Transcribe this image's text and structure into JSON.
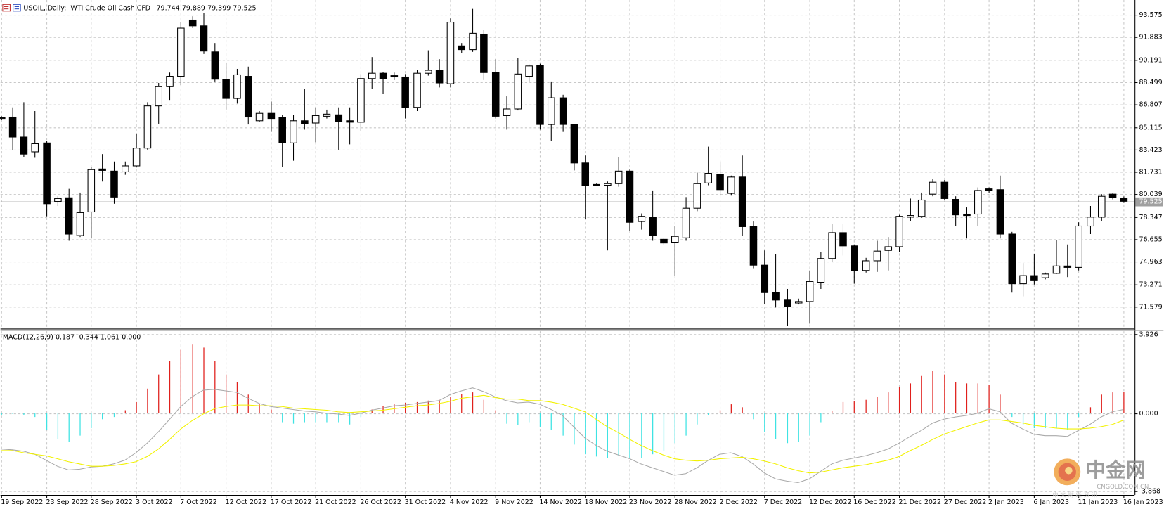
{
  "chart_data": {
    "type": "candlestick",
    "title": "USOIL, Daily:  WTI Crude Oil Cash CFD",
    "categories": [
      "19 Sep 2022",
      null,
      null,
      null,
      "23 Sep 2022",
      null,
      null,
      null,
      "28 Sep 2022",
      null,
      null,
      null,
      "3 Oct 2022",
      null,
      null,
      null,
      "7 Oct 2022",
      null,
      null,
      null,
      "12 Oct 2022",
      null,
      null,
      null,
      "17 Oct 2022",
      null,
      null,
      null,
      "21 Oct 2022",
      null,
      null,
      null,
      "26 Oct 2022",
      null,
      null,
      null,
      "31 Oct 2022",
      null,
      null,
      null,
      "4 Nov 2022",
      null,
      null,
      null,
      "9 Nov 2022",
      null,
      null,
      null,
      "14 Nov 2022",
      null,
      null,
      null,
      "18 Nov 2022",
      null,
      null,
      null,
      "23 Nov 2022",
      null,
      null,
      null,
      "28 Nov 2022",
      null,
      null,
      null,
      "2 Dec 2022",
      null,
      null,
      null,
      "7 Dec 2022",
      null,
      null,
      null,
      "12 Dec 2022",
      null,
      null,
      null,
      "16 Dec 2022",
      null,
      null,
      null,
      "21 Dec 2022",
      null,
      null,
      null,
      "27 Dec 2022",
      null,
      null,
      null,
      "2 Jan 2023",
      null,
      null,
      null,
      "6 Jan 2023",
      null,
      null,
      null,
      "11 Jan 2023",
      null,
      null,
      null,
      "16 Jan 2023"
    ],
    "open": [
      85.76,
      85.87,
      84.36,
      83.25,
      83.92,
      79.51,
      79.79,
      76.94,
      78.72,
      81.96,
      81.8,
      81.74,
      82.19,
      83.53,
      86.71,
      88.16,
      88.94,
      93.18,
      92.74,
      90.78,
      88.72,
      87.27,
      88.94,
      85.59,
      86.15,
      85.82,
      83.92,
      85.59,
      85.42,
      85.93,
      86.04,
      85.59,
      85.48,
      88.77,
      89.17,
      88.99,
      88.89,
      86.6,
      89.17,
      89.39,
      88.38,
      91.23,
      90.95,
      92.12,
      89.22,
      85.98,
      86.48,
      88.94,
      89.78,
      85.31,
      87.32,
      85.31,
      82.41,
      80.79,
      80.73,
      80.85,
      81.8,
      78.0,
      78.33,
      76.66,
      76.44,
      76.77,
      79.0,
      80.9,
      81.57,
      80.12,
      81.35,
      77.61,
      74.71,
      72.64,
      72.08,
      71.86,
      71.97,
      73.42,
      75.21,
      77.16,
      76.16,
      74.31,
      75.04,
      75.82,
      76.1,
      78.33,
      78.39,
      80.06,
      80.96,
      79.67,
      78.56,
      78.56,
      80.46,
      80.4,
      77.05,
      73.31,
      73.92,
      73.76,
      74.09,
      74.65,
      74.54,
      77.66,
      78.33,
      80.06,
      79.744
    ],
    "high": [
      85.93,
      86.6,
      86.99,
      86.32,
      84.08,
      79.9,
      80.46,
      80.18,
      82.13,
      83.08,
      82.52,
      82.52,
      84.64,
      86.99,
      88.44,
      89.22,
      93.02,
      93.46,
      93.69,
      91.45,
      89.95,
      89.5,
      89.67,
      86.32,
      87.04,
      86.04,
      86.04,
      87.99,
      86.6,
      86.43,
      86.6,
      86.6,
      89.11,
      90.39,
      89.28,
      89.22,
      89.11,
      89.44,
      90.9,
      90.23,
      93.3,
      91.45,
      94.02,
      92.46,
      90.23,
      87.43,
      90.34,
      89.83,
      89.89,
      88.55,
      87.55,
      85.31,
      82.97,
      80.85,
      81.01,
      82.86,
      81.91,
      78.61,
      80.34,
      76.72,
      77.66,
      79.84,
      81.68,
      83.64,
      82.52,
      81.46,
      82.97,
      78.0,
      75.82,
      75.54,
      72.92,
      72.19,
      74.31,
      75.71,
      77.83,
      77.83,
      76.27,
      75.26,
      76.55,
      76.83,
      78.5,
      79.73,
      80.18,
      81.18,
      81.13,
      79.9,
      79.06,
      80.57,
      80.57,
      81.46,
      77.22,
      74.87,
      75.54,
      74.15,
      76.6,
      76.27,
      77.94,
      79.17,
      80.06,
      80.12,
      79.889
    ],
    "low": [
      85.65,
      83.36,
      82.86,
      82.8,
      78.39,
      79.17,
      76.55,
      76.83,
      76.72,
      81.01,
      79.34,
      81.52,
      82.07,
      83.41,
      85.37,
      87.16,
      88.27,
      92.57,
      90.62,
      88.55,
      86.43,
      86.88,
      85.31,
      85.48,
      84.75,
      82.13,
      82.58,
      84.92,
      83.97,
      85.76,
      83.41,
      83.81,
      84.81,
      87.99,
      87.6,
      88.66,
      85.76,
      86.32,
      88.99,
      88.1,
      88.1,
      90.67,
      90.78,
      88.66,
      85.76,
      84.92,
      86.37,
      88.55,
      84.92,
      84.08,
      84.75,
      81.85,
      78.17,
      80.68,
      75.82,
      80.62,
      77.27,
      77.39,
      76.55,
      76.27,
      73.92,
      76.55,
      78.78,
      80.73,
      79.95,
      79.95,
      76.94,
      74.48,
      71.8,
      71.52,
      70.13,
      71.75,
      70.3,
      72.92,
      74.98,
      75.43,
      73.31,
      74.15,
      74.2,
      74.31,
      75.71,
      78.05,
      78.28,
      79.9,
      79.62,
      77.66,
      76.72,
      77.66,
      80.18,
      76.72,
      72.64,
      72.36,
      73.25,
      73.64,
      74.04,
      73.81,
      74.31,
      77.05,
      78.05,
      79.67,
      79.399
    ],
    "close": [
      85.82,
      84.36,
      83.08,
      83.86,
      79.34,
      79.73,
      77.05,
      78.67,
      81.91,
      81.85,
      79.84,
      82.19,
      83.53,
      86.71,
      88.16,
      88.94,
      92.57,
      92.74,
      90.84,
      88.72,
      87.27,
      89.05,
      85.87,
      86.15,
      85.76,
      83.92,
      85.59,
      85.37,
      85.98,
      86.09,
      85.54,
      85.48,
      88.77,
      89.17,
      88.77,
      88.89,
      86.6,
      89.17,
      89.39,
      88.44,
      93.02,
      90.95,
      92.18,
      89.22,
      85.93,
      86.48,
      89.11,
      89.72,
      85.31,
      87.32,
      85.31,
      82.41,
      80.73,
      80.73,
      80.85,
      81.8,
      77.94,
      78.39,
      76.94,
      76.38,
      76.88,
      79.0,
      80.85,
      81.63,
      80.4,
      81.35,
      77.61,
      74.71,
      72.64,
      72.08,
      71.58,
      71.97,
      73.48,
      75.21,
      77.16,
      76.16,
      74.31,
      75.04,
      75.77,
      76.1,
      78.39,
      78.45,
      79.62,
      80.96,
      79.73,
      78.5,
      78.45,
      80.34,
      80.34,
      77.05,
      73.31,
      73.92,
      73.59,
      74.04,
      74.65,
      74.54,
      77.66,
      78.33,
      79.9,
      79.79,
      79.525
    ],
    "up_color": "#ffffff",
    "down_color": "#000000",
    "last_price_color": "#a0a0a0",
    "ylim": [
      69.96,
      94.69
    ],
    "yticks": [
      93.575,
      91.883,
      90.191,
      88.499,
      86.807,
      85.115,
      83.423,
      81.731,
      80.039,
      78.347,
      76.655,
      74.963,
      73.271,
      71.579
    ],
    "grid": true,
    "indicator": {
      "type": "macd",
      "label": "MACD(12,26,9)",
      "ylim": [
        -4.05,
        4.07
      ],
      "yticks": [
        3.926,
        {
          "value": 0,
          "label": "0.000"
        },
        -3.868
      ],
      "histogram": {
        "up_color": "#e0201c",
        "down_color": "#3fe3e3",
        "values": [
          -0.074,
          -0.037,
          -0.111,
          -0.185,
          -0.814,
          -1.295,
          -1.406,
          -1.11,
          -0.74,
          -0.296,
          -0.185,
          0.148,
          0.555,
          1.221,
          1.924,
          2.59,
          3.145,
          3.404,
          3.256,
          2.59,
          1.924,
          1.554,
          0.925,
          0.444,
          0.185,
          -0.444,
          -0.518,
          -0.444,
          -0.444,
          -0.444,
          -0.444,
          -0.555,
          -0.185,
          0.185,
          0.37,
          0.444,
          0.518,
          0.555,
          0.629,
          0.666,
          0.814,
          0.962,
          1.036,
          0.666,
          0.148,
          -0.518,
          -0.592,
          -0.444,
          -0.666,
          -0.814,
          -1.11,
          -1.554,
          -2.035,
          -2.146,
          -2.22,
          -2.109,
          -2.22,
          -2.22,
          -2.035,
          -1.85,
          -1.48,
          -1.11,
          -0.555,
          -0.111,
          0.148,
          0.444,
          0.296,
          -0.296,
          -0.925,
          -1.295,
          -1.48,
          -1.406,
          -1.11,
          -0.444,
          0.111,
          0.555,
          0.592,
          0.666,
          0.814,
          1.036,
          1.295,
          1.48,
          1.85,
          2.109,
          1.924,
          1.554,
          1.48,
          1.48,
          1.406,
          0.925,
          -0.185,
          -0.555,
          -0.74,
          -0.74,
          -0.74,
          -0.814,
          -0.185,
          0.296,
          0.925,
          1.036,
          1.061
        ]
      },
      "macd": {
        "color": "#a9a9a9",
        "values": [
          -1.776,
          -1.813,
          -1.887,
          -2.035,
          -2.331,
          -2.627,
          -2.812,
          -2.775,
          -2.664,
          -2.627,
          -2.516,
          -2.331,
          -1.961,
          -1.48,
          -0.925,
          -0.296,
          0.333,
          0.814,
          1.147,
          1.184,
          1.11,
          1.036,
          0.74,
          0.481,
          0.333,
          0.259,
          0.185,
          0.111,
          0.074,
          0,
          -0.037,
          -0.111,
          0,
          0.148,
          0.259,
          0.37,
          0.407,
          0.481,
          0.555,
          0.629,
          0.925,
          1.11,
          1.258,
          1.073,
          0.814,
          0.629,
          0.518,
          0.555,
          0.444,
          0.185,
          -0.111,
          -0.666,
          -1.221,
          -1.591,
          -1.887,
          -2.072,
          -2.257,
          -2.516,
          -2.701,
          -2.886,
          -3.071,
          -2.997,
          -2.701,
          -2.331,
          -2.035,
          -1.961,
          -2.146,
          -2.516,
          -2.96,
          -3.256,
          -3.367,
          -3.441,
          -3.256,
          -2.886,
          -2.516,
          -2.331,
          -2.22,
          -2.109,
          -1.961,
          -1.776,
          -1.48,
          -1.147,
          -0.851,
          -0.481,
          -0.296,
          -0.185,
          -0.111,
          0,
          0.222,
          0.074,
          -0.481,
          -0.777,
          -1.036,
          -1.11,
          -1.11,
          -1.147,
          -0.851,
          -0.555,
          -0.185,
          0.074,
          0.187
        ]
      },
      "signal": {
        "color": "#f2f200",
        "values": [
          -1.85,
          -1.85,
          -1.961,
          -2.035,
          -2.109,
          -2.257,
          -2.405,
          -2.516,
          -2.627,
          -2.627,
          -2.59,
          -2.516,
          -2.405,
          -2.146,
          -1.776,
          -1.295,
          -0.777,
          -0.37,
          -0.037,
          0.222,
          0.333,
          0.407,
          0.407,
          0.37,
          0.37,
          0.333,
          0.259,
          0.222,
          0.185,
          0.148,
          0.074,
          0.037,
          0.074,
          0.111,
          0.148,
          0.222,
          0.296,
          0.37,
          0.407,
          0.481,
          0.592,
          0.74,
          0.814,
          0.888,
          0.777,
          0.703,
          0.703,
          0.629,
          0.629,
          0.555,
          0.444,
          0.259,
          0.074,
          -0.296,
          -0.666,
          -0.962,
          -1.295,
          -1.591,
          -1.85,
          -2.072,
          -2.257,
          -2.331,
          -2.368,
          -2.331,
          -2.257,
          -2.22,
          -2.183,
          -2.257,
          -2.368,
          -2.516,
          -2.701,
          -2.849,
          -2.96,
          -2.923,
          -2.812,
          -2.701,
          -2.627,
          -2.553,
          -2.442,
          -2.331,
          -2.146,
          -1.85,
          -1.591,
          -1.295,
          -1.036,
          -0.851,
          -0.666,
          -0.481,
          -0.333,
          -0.333,
          -0.407,
          -0.481,
          -0.592,
          -0.666,
          -0.74,
          -0.777,
          -0.777,
          -0.74,
          -0.666,
          -0.555,
          -0.344
        ]
      },
      "down_buffer_value": {
        "value": 0,
        "label": "0.000"
      }
    }
  },
  "watermark": {
    "brand": "中金网",
    "url": "CNGOLD.COM.CN",
    "tagline": "中 文 财 经 资 讯"
  }
}
